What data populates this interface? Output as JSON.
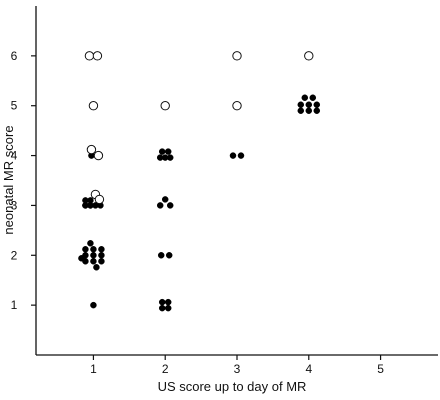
{
  "chart_data": {
    "type": "scatter",
    "title": "",
    "xlabel": "US score up to day of MR",
    "ylabel": "neonatal MR  score",
    "x_ticks": [
      1,
      2,
      3,
      4,
      5
    ],
    "y_ticks": [
      1,
      2,
      3,
      4,
      5,
      6
    ],
    "xlim": [
      0.2,
      5.8
    ],
    "ylim": [
      0,
      7
    ],
    "grid": false,
    "legend": null,
    "colors": {
      "axis": "#111111",
      "filled": "#000000",
      "open_fill": "#ffffff",
      "open_stroke": "#111111"
    },
    "series": [
      {
        "marker": "filled",
        "points": [
          {
            "x": 1,
            "y": 1,
            "n": 1
          },
          {
            "x": 1,
            "y": 2,
            "n": 12
          },
          {
            "x": 1,
            "y": 3,
            "n": 8
          },
          {
            "x": 1,
            "y": 4,
            "n": 1
          },
          {
            "x": 2,
            "y": 1,
            "n": 4
          },
          {
            "x": 2,
            "y": 2,
            "n": 2
          },
          {
            "x": 2,
            "y": 3,
            "n": 3
          },
          {
            "x": 2,
            "y": 4,
            "n": 5
          },
          {
            "x": 3,
            "y": 4,
            "n": 2
          },
          {
            "x": 4,
            "y": 5,
            "n": 8
          }
        ]
      },
      {
        "marker": "open",
        "points": [
          {
            "x": 1,
            "y": 3,
            "n": 2
          },
          {
            "x": 1,
            "y": 4,
            "n": 2
          },
          {
            "x": 1,
            "y": 5,
            "n": 1
          },
          {
            "x": 1,
            "y": 6,
            "n": 2
          },
          {
            "x": 2,
            "y": 5,
            "n": 1
          },
          {
            "x": 3,
            "y": 5,
            "n": 1
          },
          {
            "x": 3,
            "y": 6,
            "n": 1
          },
          {
            "x": 4,
            "y": 6,
            "n": 1
          }
        ]
      }
    ]
  }
}
